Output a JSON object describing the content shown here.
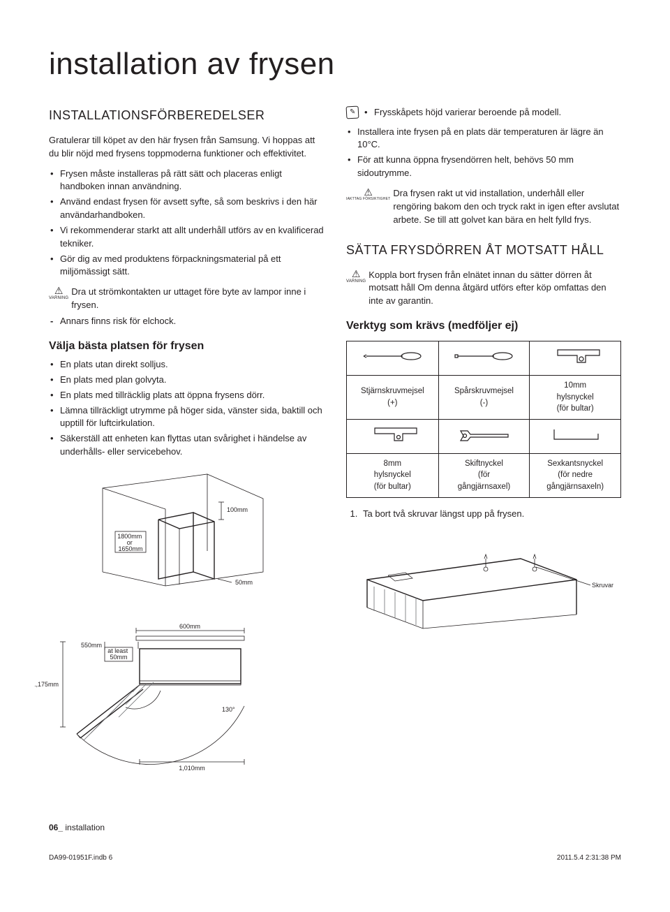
{
  "page_title": "installation av frysen",
  "left": {
    "h2": "INSTALLATIONSFÖRBEREDELSER",
    "intro": "Gratulerar till köpet av den här frysen från Samsung. Vi hoppas att du blir nöjd med frysens toppmoderna funktioner och effektivitet.",
    "bullets1": [
      "Frysen måste installeras på rätt sätt och placeras enligt handboken innan användning.",
      "Använd endast frysen för avsett syfte, så som beskrivs i den här användarhandboken.",
      "Vi rekommenderar starkt att allt underhåll utförs av en kvalificerad tekniker.",
      "Gör dig av med produktens förpackningsmaterial på ett miljömässigt sätt."
    ],
    "warn_label": "VARNING",
    "warn1": "Dra ut strömkontakten ur uttaget före byte av lampor inne i frysen.",
    "dash1": "Annars finns risk för elchock.",
    "h3": "Välja bästa platsen för frysen",
    "bullets2": [
      "En plats utan direkt solljus.",
      "En plats med plan golvyta.",
      "En plats med tillräcklig plats att öppna frysens dörr.",
      "Lämna tillräckligt utrymme på höger sida, vänster sida, baktill och upptill för luftcirkulation.",
      "Säkerställ att enheten kan flyttas utan svårighet i händelse av underhålls- eller servicebehov."
    ],
    "clearance": {
      "top": "100mm",
      "height": "1800mm\nor\n1650mm",
      "side": "50mm"
    },
    "footprint": {
      "width": "600mm",
      "depth": "550mm",
      "gap": "at least\n50mm",
      "total_depth": "1,175mm",
      "swing": "1,010mm",
      "angle": "130°"
    }
  },
  "right": {
    "note_bullet": "Frysskåpets höjd varierar beroende på modell.",
    "bullets_top": [
      "Installera inte frysen på en plats där temperaturen är lägre än 10°C.",
      "För att kunna öppna frysendörren helt, behövs 50 mm sidoutrymme."
    ],
    "caution_label": "IAKTTAG FÖRSIKTIGHET",
    "caution_text": "Dra frysen rakt ut vid installation, underhåll eller rengöring bakom den och tryck rakt in igen efter avslutat arbete. Se till att golvet kan bära en helt fylld frys.",
    "h2": "SÄTTA FRYSDÖRREN ÅT MOTSATT HÅLL",
    "warn_label": "VARNING",
    "warn_text": "Koppla bort frysen från elnätet innan du sätter dörren åt motsatt håll Om denna åtgärd utförs efter köp omfattas den inte av garantin.",
    "h3_tools": "Verktyg som krävs (medföljer ej)",
    "tools": {
      "r1": [
        "Stjärnskruvmejsel\n(+)",
        "Spårskruvmejsel\n(-)",
        "10mm\nhylsnyckel\n(för bultar)"
      ],
      "r2": [
        "8mm\nhylsnyckel\n(för bultar)",
        "Skiftnyckel\n(för\ngångjärnsaxel)",
        "Sexkantsnyckel\n(för nedre\ngångjärnsaxeln)"
      ]
    },
    "step1": "Ta bort två skruvar längst upp på frysen.",
    "skruvar": "Skruvar"
  },
  "footer": {
    "page_num": "06_",
    "page_label": "installation"
  },
  "print": {
    "left": "DA99-01951F.indb   6",
    "right": "2011.5.4   2:31:38 PM"
  }
}
